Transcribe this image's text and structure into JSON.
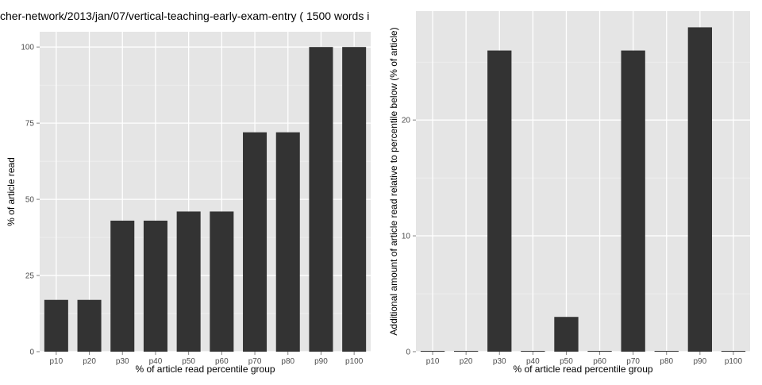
{
  "chart_data": [
    {
      "type": "bar",
      "title": "cher-network/2013/jan/07/vertical-teaching-early-exam-entry ( 1500 words i",
      "xlabel": "% of article read percentile group",
      "ylabel": "% of article read",
      "categories": [
        "p10",
        "p20",
        "p30",
        "p40",
        "p50",
        "p60",
        "p70",
        "p80",
        "p90",
        "p100"
      ],
      "values": [
        17,
        17,
        43,
        43,
        46,
        46,
        72,
        72,
        100,
        100
      ],
      "ylim": [
        0,
        105
      ],
      "yticks": [
        "0",
        "25",
        "50",
        "75",
        "100"
      ],
      "grid": true,
      "bar_color": "#333333",
      "panel_color": "#e5e5e5",
      "grid_color": "#ffffff"
    },
    {
      "type": "bar",
      "title": "",
      "xlabel": "% of article read percentile group",
      "ylabel": "Additional amount of article read relative to percentile below (% of article)",
      "categories": [
        "p10",
        "p20",
        "p30",
        "p40",
        "p50",
        "p60",
        "p70",
        "p80",
        "p90",
        "p100"
      ],
      "values": [
        0,
        0,
        26,
        0,
        3,
        0,
        26,
        0,
        28,
        0
      ],
      "ylim": [
        0,
        29.4
      ],
      "yticks": [
        "0",
        "10",
        "20"
      ],
      "grid": true,
      "bar_color": "#333333",
      "panel_color": "#e5e5e5",
      "grid_color": "#ffffff"
    }
  ]
}
